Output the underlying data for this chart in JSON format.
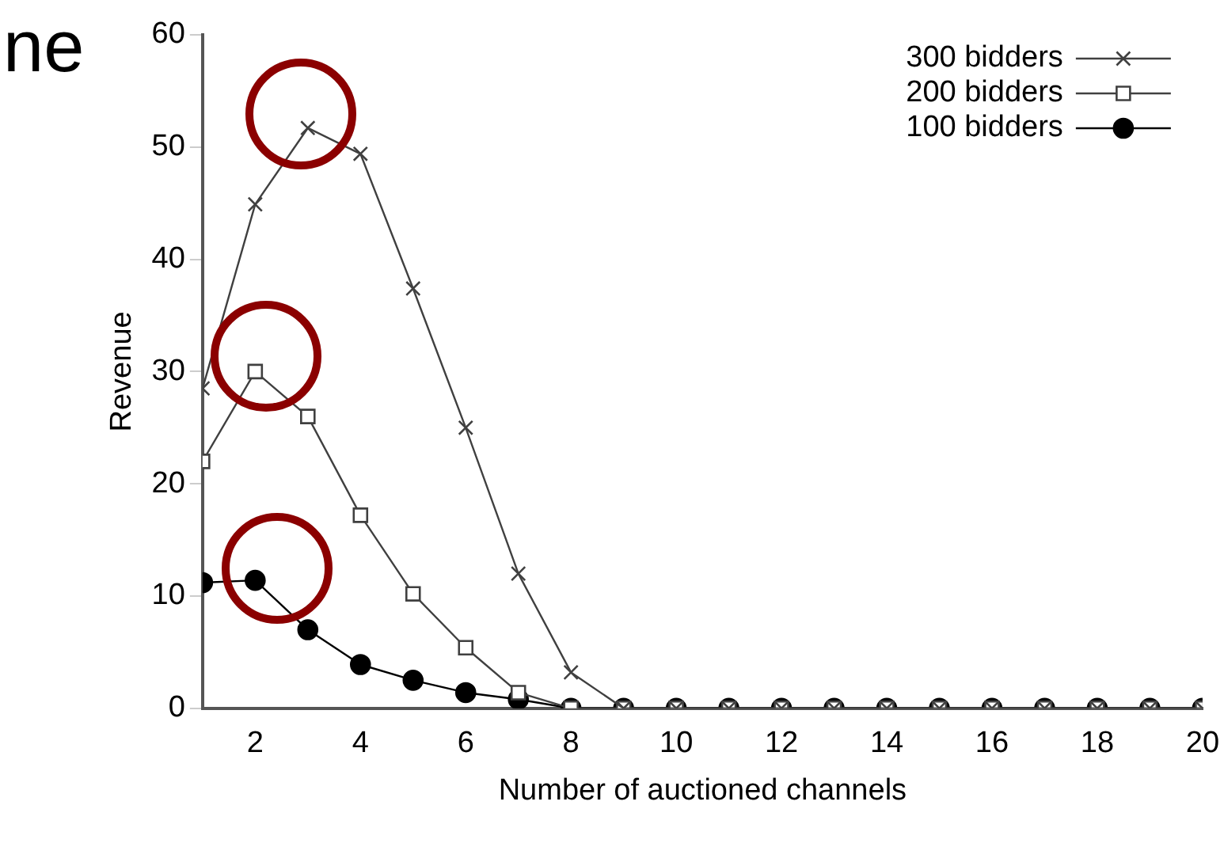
{
  "chart_data": {
    "type": "line",
    "xlabel": "Number of auctioned channels",
    "ylabel": "Revenue",
    "annotations": [
      "ne"
    ],
    "x": [
      1,
      2,
      3,
      4,
      5,
      6,
      7,
      8,
      9,
      10,
      11,
      12,
      13,
      14,
      15,
      16,
      17,
      18,
      19,
      20
    ],
    "series": [
      {
        "name": "300 bidders",
        "color": "#404040",
        "marker": "cross",
        "values": [
          28.5,
          44.9,
          51.7,
          49.4,
          37.4,
          25,
          12,
          3.2,
          0,
          0,
          0,
          0,
          0,
          0,
          0,
          0,
          0,
          0,
          0,
          0
        ]
      },
      {
        "name": "200 bidders",
        "color": "#404040",
        "marker": "square",
        "values": [
          22,
          30,
          26,
          17.2,
          10.2,
          5.4,
          1.4,
          0,
          0,
          0,
          0,
          0,
          0,
          0,
          0,
          0,
          0,
          0,
          0,
          0
        ]
      },
      {
        "name": "100 bidders",
        "color": "#000000",
        "marker": "circle",
        "values": [
          11.2,
          11.4,
          7,
          3.9,
          2.5,
          1.4,
          0.8,
          0,
          0,
          0,
          0,
          0,
          0,
          0,
          0,
          0,
          0,
          0,
          0,
          0
        ]
      }
    ],
    "xlim": [
      1,
      20
    ],
    "xticks": [
      2,
      4,
      6,
      8,
      10,
      12,
      14,
      16,
      18,
      20
    ],
    "ylim": [
      0,
      60
    ],
    "yticks": [
      0,
      10,
      20,
      30,
      40,
      50,
      60
    ],
    "grid": false,
    "legend": "top right",
    "line_style": "solid"
  }
}
